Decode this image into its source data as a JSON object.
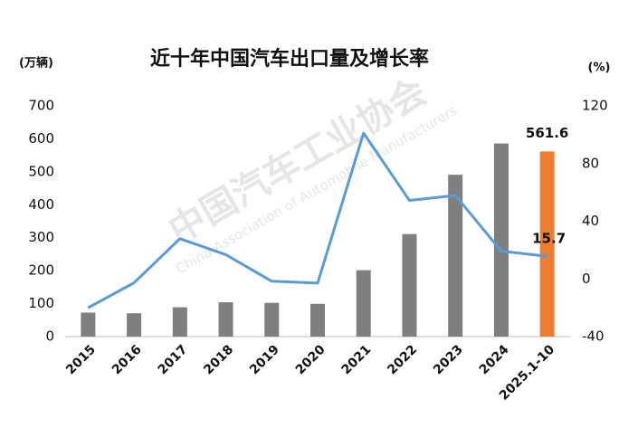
{
  "chart_data": {
    "type": "bar-line",
    "title": "近十年中国汽车出口量及增长率",
    "y_unit": "(万辆)",
    "y2_unit": "(%)",
    "watermark": [
      "中国汽车工业协会",
      "China Association of Automobile Manufacturers"
    ],
    "categories": [
      "2015",
      "2016",
      "2017",
      "2018",
      "2019",
      "2020",
      "2021",
      "2022",
      "2023",
      "2024",
      "2025.1-10"
    ],
    "series": [
      {
        "type": "bar",
        "color": "#7f7f7f",
        "colors": [
          "#7f7f7f",
          "#7f7f7f",
          "#7f7f7f",
          "#7f7f7f",
          "#7f7f7f",
          "#7f7f7f",
          "#7f7f7f",
          "#7f7f7f",
          "#7f7f7f",
          "#7f7f7f",
          "#ed7d31"
        ],
        "values": [
          72.8,
          70.8,
          89.1,
          104.1,
          102.4,
          99.5,
          201.5,
          311.1,
          491,
          585.9,
          561.6
        ],
        "labeled": [
          10
        ]
      },
      {
        "type": "line",
        "axis": "y2",
        "color": "#5b9bd5",
        "values": [
          -20,
          -2.7,
          27.9,
          16.8,
          -1.6,
          -2.9,
          101.1,
          54.4,
          57.9,
          19.3,
          15.7
        ],
        "labeled": [
          10
        ]
      }
    ],
    "ylim": [
      0,
      700
    ],
    "yticks": [
      0,
      100,
      200,
      300,
      400,
      500,
      600,
      700
    ],
    "y2lim": [
      -40,
      120
    ],
    "y2ticks": [
      -40,
      0,
      40,
      80,
      120
    ]
  }
}
